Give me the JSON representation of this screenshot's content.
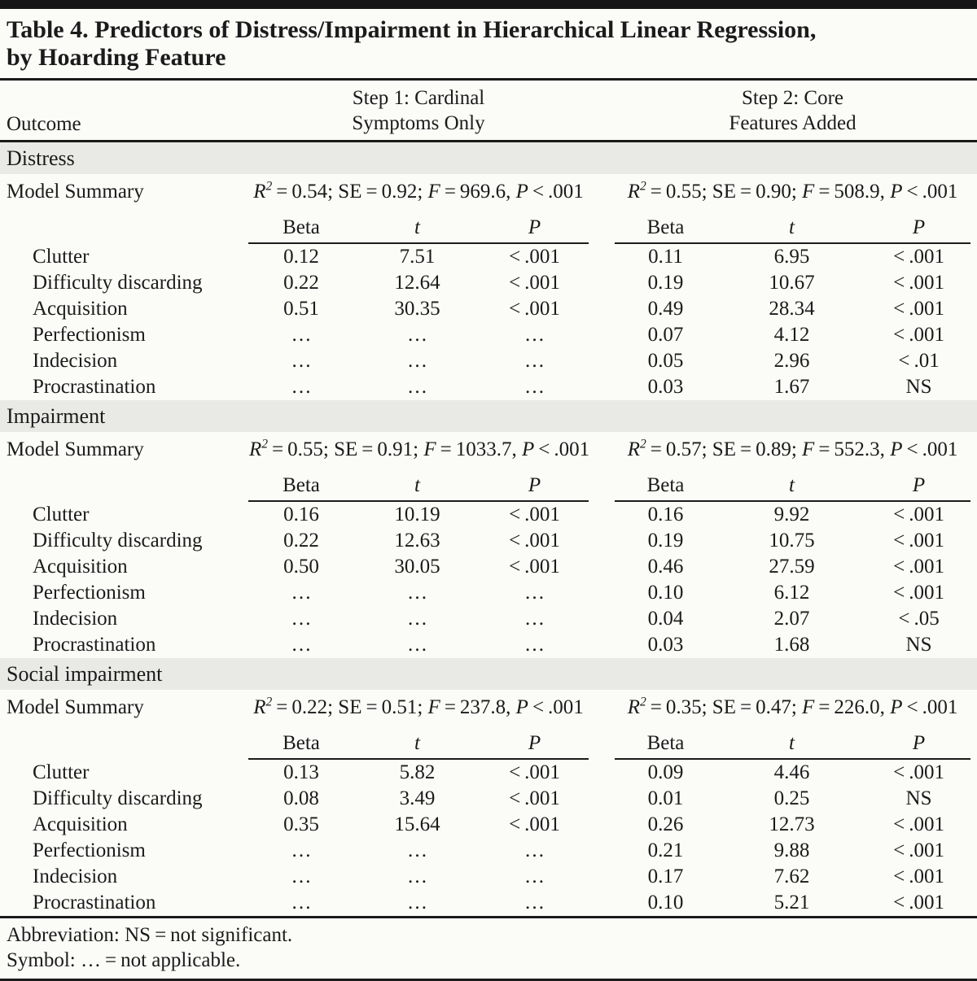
{
  "title": {
    "line1": "Table 4. Predictors of Distress/Impairment in Hierarchical Linear Regression,",
    "line2": "by Hoarding Feature"
  },
  "header": {
    "outcome": "Outcome",
    "step1_line1": "Step 1: Cardinal",
    "step1_line2": "Symptoms Only",
    "step2_line1": "Step 2: Core",
    "step2_line2": "Features Added"
  },
  "labels": {
    "model_summary": "Model Summary"
  },
  "subheader": {
    "beta": "Beta",
    "t": "t",
    "p": "P"
  },
  "sections": [
    {
      "label": "Distress",
      "step1_summary": [
        [
          "R",
          "i"
        ],
        [
          "2",
          "sup"
        ],
        [
          " = 0.54; SE = 0.92; ",
          ""
        ],
        [
          "F",
          "i"
        ],
        [
          " = 969.6, ",
          ""
        ],
        [
          "P",
          "i"
        ],
        [
          " < .001",
          ""
        ]
      ],
      "step2_summary": [
        [
          "R",
          "i"
        ],
        [
          "2",
          "sup"
        ],
        [
          " = 0.55; SE = 0.90; ",
          ""
        ],
        [
          "F",
          "i"
        ],
        [
          " = 508.9, ",
          ""
        ],
        [
          "P",
          "i"
        ],
        [
          " < .001",
          ""
        ]
      ],
      "rows": [
        {
          "label": "Clutter",
          "s1": [
            "0.12",
            "7.51",
            "< .001"
          ],
          "s2": [
            "0.11",
            "6.95",
            "< .001"
          ]
        },
        {
          "label": "Difficulty discarding",
          "s1": [
            "0.22",
            "12.64",
            "< .001"
          ],
          "s2": [
            "0.19",
            "10.67",
            "< .001"
          ]
        },
        {
          "label": "Acquisition",
          "s1": [
            "0.51",
            "30.35",
            "< .001"
          ],
          "s2": [
            "0.49",
            "28.34",
            "< .001"
          ]
        },
        {
          "label": "Perfectionism",
          "s1": [
            "…",
            "…",
            "…"
          ],
          "s2": [
            "0.07",
            "4.12",
            "< .001"
          ]
        },
        {
          "label": "Indecision",
          "s1": [
            "…",
            "…",
            "…"
          ],
          "s2": [
            "0.05",
            "2.96",
            "< .01"
          ]
        },
        {
          "label": "Procrastination",
          "s1": [
            "…",
            "…",
            "…"
          ],
          "s2": [
            "0.03",
            "1.67",
            "NS"
          ]
        }
      ]
    },
    {
      "label": "Impairment",
      "step1_summary": [
        [
          "R",
          "i"
        ],
        [
          "2",
          "sup"
        ],
        [
          " = 0.55; SE = 0.91; ",
          ""
        ],
        [
          "F",
          "i"
        ],
        [
          " = 1033.7, ",
          ""
        ],
        [
          "P",
          "i"
        ],
        [
          " < .001",
          ""
        ]
      ],
      "step2_summary": [
        [
          "R",
          "i"
        ],
        [
          "2",
          "sup"
        ],
        [
          " = 0.57; SE = 0.89; ",
          ""
        ],
        [
          "F",
          "i"
        ],
        [
          " = 552.3, ",
          ""
        ],
        [
          "P",
          "i"
        ],
        [
          " < .001",
          ""
        ]
      ],
      "rows": [
        {
          "label": "Clutter",
          "s1": [
            "0.16",
            "10.19",
            "< .001"
          ],
          "s2": [
            "0.16",
            "9.92",
            "< .001"
          ]
        },
        {
          "label": "Difficulty discarding",
          "s1": [
            "0.22",
            "12.63",
            "< .001"
          ],
          "s2": [
            "0.19",
            "10.75",
            "< .001"
          ]
        },
        {
          "label": "Acquisition",
          "s1": [
            "0.50",
            "30.05",
            "< .001"
          ],
          "s2": [
            "0.46",
            "27.59",
            "< .001"
          ]
        },
        {
          "label": "Perfectionism",
          "s1": [
            "…",
            "…",
            "…"
          ],
          "s2": [
            "0.10",
            "6.12",
            "< .001"
          ]
        },
        {
          "label": "Indecision",
          "s1": [
            "…",
            "…",
            "…"
          ],
          "s2": [
            "0.04",
            "2.07",
            "< .05"
          ]
        },
        {
          "label": "Procrastination",
          "s1": [
            "…",
            "…",
            "…"
          ],
          "s2": [
            "0.03",
            "1.68",
            "NS"
          ]
        }
      ]
    },
    {
      "label": "Social impairment",
      "step1_summary": [
        [
          "R",
          "i"
        ],
        [
          "2",
          "sup"
        ],
        [
          " = 0.22; SE = 0.51; ",
          ""
        ],
        [
          "F",
          "i"
        ],
        [
          " = 237.8, ",
          ""
        ],
        [
          "P",
          "i"
        ],
        [
          " < .001",
          ""
        ]
      ],
      "step2_summary": [
        [
          "R",
          "i"
        ],
        [
          "2",
          "sup"
        ],
        [
          " = 0.35; SE = 0.47; ",
          ""
        ],
        [
          "F",
          "i"
        ],
        [
          " = 226.0, ",
          ""
        ],
        [
          "P",
          "i"
        ],
        [
          " < .001",
          ""
        ]
      ],
      "rows": [
        {
          "label": "Clutter",
          "s1": [
            "0.13",
            "5.82",
            "< .001"
          ],
          "s2": [
            "0.09",
            "4.46",
            "< .001"
          ]
        },
        {
          "label": "Difficulty discarding",
          "s1": [
            "0.08",
            "3.49",
            "< .001"
          ],
          "s2": [
            "0.01",
            "0.25",
            "NS"
          ]
        },
        {
          "label": "Acquisition",
          "s1": [
            "0.35",
            "15.64",
            "< .001"
          ],
          "s2": [
            "0.26",
            "12.73",
            "< .001"
          ]
        },
        {
          "label": "Perfectionism",
          "s1": [
            "…",
            "…",
            "…"
          ],
          "s2": [
            "0.21",
            "9.88",
            "< .001"
          ]
        },
        {
          "label": "Indecision",
          "s1": [
            "…",
            "…",
            "…"
          ],
          "s2": [
            "0.17",
            "7.62",
            "< .001"
          ]
        },
        {
          "label": "Procrastination",
          "s1": [
            "…",
            "…",
            "…"
          ],
          "s2": [
            "0.10",
            "5.21",
            "< .001"
          ]
        }
      ]
    }
  ],
  "footnotes": [
    "Abbreviation: NS = not significant.",
    "Symbol: … = not applicable."
  ]
}
